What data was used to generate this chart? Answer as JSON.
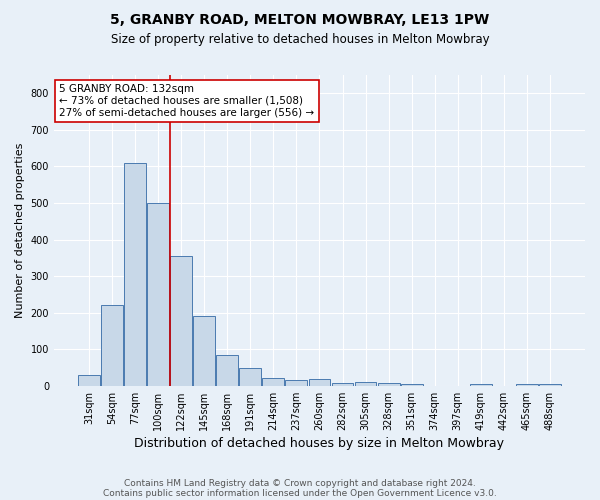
{
  "title": "5, GRANBY ROAD, MELTON MOWBRAY, LE13 1PW",
  "subtitle": "Size of property relative to detached houses in Melton Mowbray",
  "xlabel": "Distribution of detached houses by size in Melton Mowbray",
  "ylabel": "Number of detached properties",
  "footnote1": "Contains HM Land Registry data © Crown copyright and database right 2024.",
  "footnote2": "Contains public sector information licensed under the Open Government Licence v3.0.",
  "bar_labels": [
    "31sqm",
    "54sqm",
    "77sqm",
    "100sqm",
    "122sqm",
    "145sqm",
    "168sqm",
    "191sqm",
    "214sqm",
    "237sqm",
    "260sqm",
    "282sqm",
    "305sqm",
    "328sqm",
    "351sqm",
    "374sqm",
    "397sqm",
    "419sqm",
    "442sqm",
    "465sqm",
    "488sqm"
  ],
  "bar_values": [
    30,
    220,
    610,
    500,
    355,
    190,
    85,
    50,
    22,
    16,
    20,
    7,
    10,
    9,
    5,
    0,
    0,
    4,
    0,
    5,
    5
  ],
  "bar_color": "#c8d8e8",
  "bar_edge_color": "#4a7ab0",
  "vline_color": "#cc0000",
  "annotation_text": "5 GRANBY ROAD: 132sqm\n← 73% of detached houses are smaller (1,508)\n27% of semi-detached houses are larger (556) →",
  "annotation_box_color": "#ffffff",
  "annotation_box_edge": "#cc0000",
  "ylim": [
    0,
    850
  ],
  "yticks": [
    0,
    100,
    200,
    300,
    400,
    500,
    600,
    700,
    800
  ],
  "background_color": "#e8f0f8",
  "grid_color": "#ffffff",
  "title_fontsize": 10,
  "subtitle_fontsize": 8.5,
  "xlabel_fontsize": 9,
  "ylabel_fontsize": 8,
  "tick_fontsize": 7,
  "annotation_fontsize": 7.5,
  "footnote_fontsize": 6.5
}
